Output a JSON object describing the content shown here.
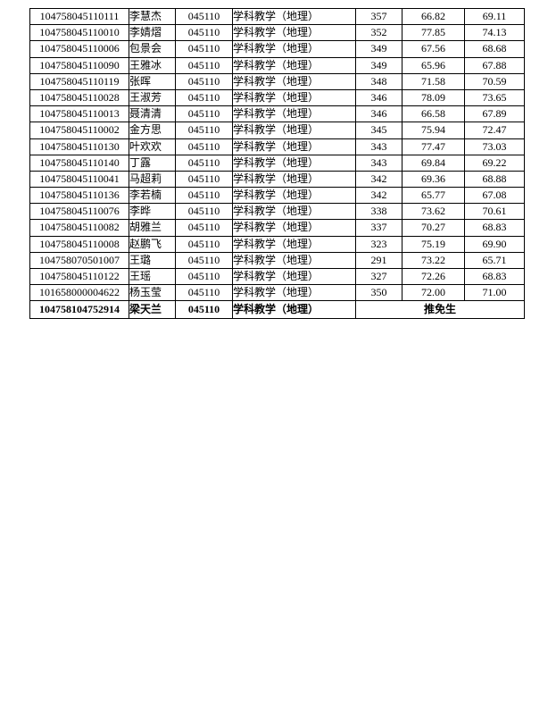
{
  "document": {
    "background_color": "#ffffff",
    "border_color": "#000000",
    "text_color": "#000000"
  },
  "table": {
    "rows": [
      {
        "id": "104758045110111",
        "name": "李慧杰",
        "code": "045110",
        "major": "学科教学（地理）",
        "score1": "357",
        "score2": "66.82",
        "score3": "69.11"
      },
      {
        "id": "104758045110010",
        "name": "李婧熠",
        "code": "045110",
        "major": "学科教学（地理）",
        "score1": "352",
        "score2": "77.85",
        "score3": "74.13"
      },
      {
        "id": "104758045110006",
        "name": "包景会",
        "code": "045110",
        "major": "学科教学（地理）",
        "score1": "349",
        "score2": "67.56",
        "score3": "68.68"
      },
      {
        "id": "104758045110090",
        "name": "王雅冰",
        "code": "045110",
        "major": "学科教学（地理）",
        "score1": "349",
        "score2": "65.96",
        "score3": "67.88"
      },
      {
        "id": "104758045110119",
        "name": "张晖",
        "code": "045110",
        "major": "学科教学（地理）",
        "score1": "348",
        "score2": "71.58",
        "score3": "70.59"
      },
      {
        "id": "104758045110028",
        "name": "王淑芳",
        "code": "045110",
        "major": "学科教学（地理）",
        "score1": "346",
        "score2": "78.09",
        "score3": "73.65"
      },
      {
        "id": "104758045110013",
        "name": "聂清清",
        "code": "045110",
        "major": "学科教学（地理）",
        "score1": "346",
        "score2": "66.58",
        "score3": "67.89"
      },
      {
        "id": "104758045110002",
        "name": "金方思",
        "code": "045110",
        "major": "学科教学（地理）",
        "score1": "345",
        "score2": "75.94",
        "score3": "72.47"
      },
      {
        "id": "104758045110130",
        "name": "叶欢欢",
        "code": "045110",
        "major": "学科教学（地理）",
        "score1": "343",
        "score2": "77.47",
        "score3": "73.03"
      },
      {
        "id": "104758045110140",
        "name": "丁露",
        "code": "045110",
        "major": "学科教学（地理）",
        "score1": "343",
        "score2": "69.84",
        "score3": "69.22"
      },
      {
        "id": "104758045110041",
        "name": "马超莉",
        "code": "045110",
        "major": "学科教学（地理）",
        "score1": "342",
        "score2": "69.36",
        "score3": "68.88"
      },
      {
        "id": "104758045110136",
        "name": "李若楠",
        "code": "045110",
        "major": "学科教学（地理）",
        "score1": "342",
        "score2": "65.77",
        "score3": "67.08"
      },
      {
        "id": "104758045110076",
        "name": "李晔",
        "code": "045110",
        "major": "学科教学（地理）",
        "score1": "338",
        "score2": "73.62",
        "score3": "70.61"
      },
      {
        "id": "104758045110082",
        "name": "胡雅兰",
        "code": "045110",
        "major": "学科教学（地理）",
        "score1": "337",
        "score2": "70.27",
        "score3": "68.83"
      },
      {
        "id": "104758045110008",
        "name": "赵鹏飞",
        "code": "045110",
        "major": "学科教学（地理）",
        "score1": "323",
        "score2": "75.19",
        "score3": "69.90"
      },
      {
        "id": "104758070501007",
        "name": "王璐",
        "code": "045110",
        "major": "学科教学（地理）",
        "score1": "291",
        "score2": "73.22",
        "score3": "65.71"
      },
      {
        "id": "104758045110122",
        "name": "王瑶",
        "code": "045110",
        "major": "学科教学（地理）",
        "score1": "327",
        "score2": "72.26",
        "score3": "68.83"
      },
      {
        "id": "101658000004622",
        "name": "杨玉莹",
        "code": "045110",
        "major": "学科教学（地理）",
        "score1": "350",
        "score2": "72.00",
        "score3": "71.00"
      }
    ],
    "footer_row": {
      "id": "104758104752914",
      "name": "梁天兰",
      "code": "045110",
      "major": "学科教学（地理）",
      "merged_label": "推免生"
    }
  }
}
